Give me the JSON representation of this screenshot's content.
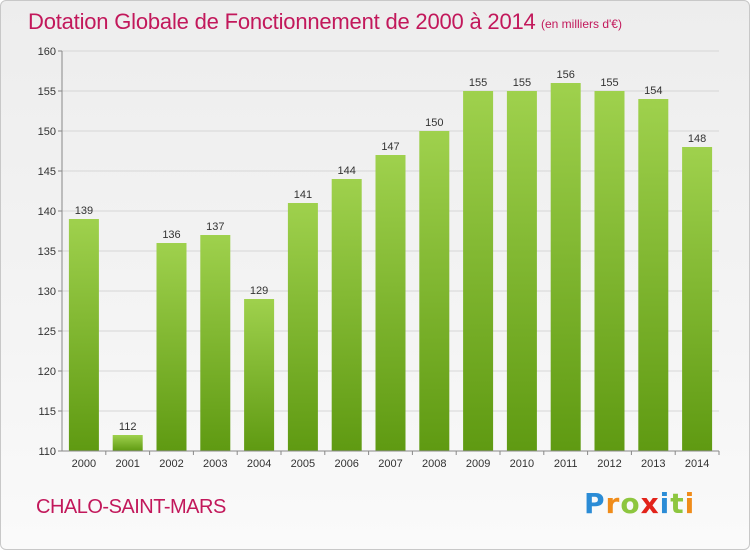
{
  "header": {
    "title": "Dotation Globale de Fonctionnement de 2000 à 2014",
    "unit": "(en milliers d'€)"
  },
  "footer": {
    "city": "CHALO-SAINT-MARS",
    "logo": [
      "P",
      "r",
      "o",
      "x",
      "i",
      "t",
      "i"
    ]
  },
  "colors": {
    "accent": "#c2185b",
    "bar_top": "#9fd14d",
    "bar_bottom": "#5f9a12"
  },
  "chart_data": {
    "type": "bar",
    "title": "Dotation Globale de Fonctionnement de 2000 à 2014",
    "subtitle": "(en milliers d'€)",
    "xlabel": "",
    "ylabel": "",
    "categories": [
      "2000",
      "2001",
      "2002",
      "2003",
      "2004",
      "2005",
      "2006",
      "2007",
      "2008",
      "2009",
      "2010",
      "2011",
      "2012",
      "2013",
      "2014"
    ],
    "values": [
      139,
      112,
      136,
      137,
      129,
      141,
      144,
      147,
      150,
      155,
      155,
      156,
      155,
      154,
      148
    ],
    "ylim": [
      110,
      160
    ],
    "yticks": [
      110,
      115,
      120,
      125,
      130,
      135,
      140,
      145,
      150,
      155,
      160
    ],
    "grid": true,
    "legend": "none"
  }
}
